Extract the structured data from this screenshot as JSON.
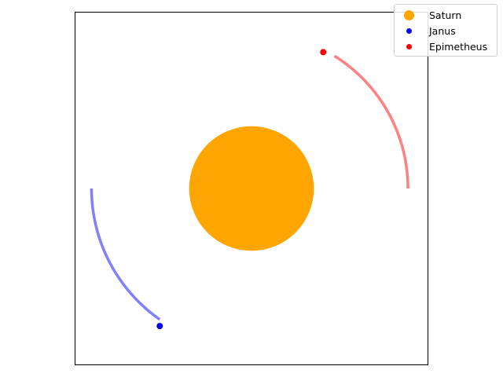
{
  "chart_data": {
    "type": "scatter",
    "title": "",
    "xlabel": "",
    "ylabel": "",
    "xlim": [
      -1.5,
      1.5
    ],
    "ylim": [
      -1.5,
      1.5
    ],
    "grid": false,
    "axes_ticks": false,
    "legend_position": "top-right",
    "series": [
      {
        "name": "Saturn",
        "color": "#FFA500",
        "points": [
          {
            "x": 0,
            "y": 0
          }
        ],
        "radius": 0.53
      },
      {
        "name": "Janus",
        "color": "#0000FF",
        "trail_color": "#8080FF",
        "orbit_radius": 1.36,
        "trail_from_deg": 180,
        "trail_to_deg": 235,
        "points": [
          {
            "x": -0.78,
            "y": -1.17
          }
        ]
      },
      {
        "name": "Epimetheus",
        "color": "#FF0000",
        "trail_color": "#FF8080",
        "orbit_radius": 1.33,
        "trail_from_deg": 0,
        "trail_to_deg": 58,
        "points": [
          {
            "x": 0.61,
            "y": 1.16
          }
        ]
      }
    ]
  }
}
